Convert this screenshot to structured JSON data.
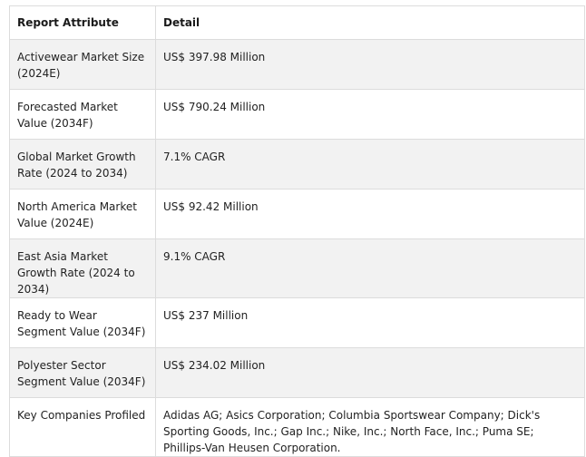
{
  "table": {
    "headers": [
      "Report Attribute",
      "Detail"
    ],
    "rows": [
      {
        "attribute": "Activewear Market Size (2024E)",
        "detail": "US$ 397.98 Million"
      },
      {
        "attribute": "Forecasted Market Value (2034F)",
        "detail": "US$ 790.24 Million"
      },
      {
        "attribute": "Global Market Growth Rate (2024 to 2034)",
        "detail": "7.1% CAGR"
      },
      {
        "attribute": "North America Market Value (2024E)",
        "detail": "US$ 92.42 Million"
      },
      {
        "attribute": "East Asia Market Growth Rate (2024 to 2034)",
        "detail": "9.1% CAGR"
      },
      {
        "attribute": "Ready to Wear Segment Value (2034F)",
        "detail": "US$ 237 Million"
      },
      {
        "attribute": "Polyester Sector Segment Value (2034F)",
        "detail": "US$ 234.02 Million"
      },
      {
        "attribute": "Key Companies Profiled",
        "detail": "Adidas AG; Asics Corporation; Columbia Sportswear Company; Dick's Sporting Goods, Inc.; Gap Inc.; Nike, Inc.; North Face, Inc.; Puma SE; Phillips-Van Heusen Corporation."
      }
    ]
  }
}
